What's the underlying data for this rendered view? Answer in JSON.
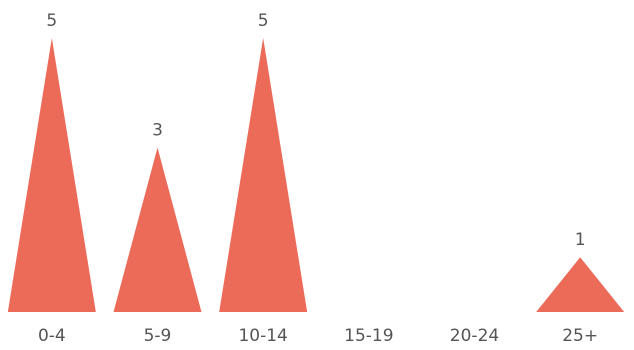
{
  "chart_data": {
    "type": "bar",
    "bar_shape": "triangle",
    "categories": [
      "0-4",
      "5-9",
      "10-14",
      "15-19",
      "20-24",
      "25+"
    ],
    "values": [
      5,
      3,
      5,
      0,
      0,
      1
    ],
    "data_labels": [
      "5",
      "3",
      "5",
      "",
      "",
      "1"
    ],
    "title": "",
    "xlabel": "",
    "ylabel": "",
    "ylim": [
      0,
      5
    ],
    "grid": false,
    "legend": "none",
    "color": "#EC6A58"
  }
}
